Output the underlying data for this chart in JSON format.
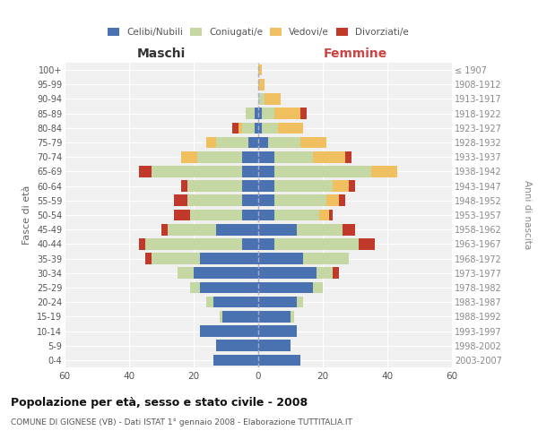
{
  "age_groups": [
    "0-4",
    "5-9",
    "10-14",
    "15-19",
    "20-24",
    "25-29",
    "30-34",
    "35-39",
    "40-44",
    "45-49",
    "50-54",
    "55-59",
    "60-64",
    "65-69",
    "70-74",
    "75-79",
    "80-84",
    "85-89",
    "90-94",
    "95-99",
    "100+"
  ],
  "birth_years": [
    "2003-2007",
    "1998-2002",
    "1993-1997",
    "1988-1992",
    "1983-1987",
    "1978-1982",
    "1973-1977",
    "1968-1972",
    "1963-1967",
    "1958-1962",
    "1953-1957",
    "1948-1952",
    "1943-1947",
    "1938-1942",
    "1933-1937",
    "1928-1932",
    "1923-1927",
    "1918-1922",
    "1913-1917",
    "1908-1912",
    "≤ 1907"
  ],
  "maschi_celibi": [
    14,
    13,
    18,
    11,
    14,
    18,
    20,
    18,
    5,
    13,
    5,
    5,
    5,
    5,
    5,
    3,
    1,
    1,
    0,
    0,
    0
  ],
  "maschi_coniugati": [
    0,
    0,
    0,
    1,
    2,
    3,
    5,
    15,
    30,
    15,
    16,
    17,
    17,
    28,
    14,
    10,
    4,
    3,
    0,
    0,
    0
  ],
  "maschi_vedovi": [
    0,
    0,
    0,
    0,
    0,
    0,
    0,
    0,
    0,
    0,
    0,
    0,
    0,
    0,
    5,
    3,
    1,
    0,
    0,
    0,
    0
  ],
  "maschi_divorziati": [
    0,
    0,
    0,
    0,
    0,
    0,
    0,
    2,
    2,
    2,
    5,
    4,
    2,
    4,
    0,
    0,
    2,
    0,
    0,
    0,
    0
  ],
  "femmine_celibi": [
    13,
    10,
    12,
    10,
    12,
    17,
    18,
    14,
    5,
    12,
    5,
    5,
    5,
    5,
    5,
    3,
    1,
    1,
    0,
    0,
    0
  ],
  "femmine_coniugati": [
    0,
    0,
    0,
    1,
    2,
    3,
    5,
    14,
    26,
    14,
    14,
    16,
    18,
    30,
    12,
    10,
    5,
    4,
    2,
    0,
    0
  ],
  "femmine_vedovi": [
    0,
    0,
    0,
    0,
    0,
    0,
    0,
    0,
    0,
    0,
    3,
    4,
    5,
    8,
    10,
    8,
    8,
    8,
    5,
    2,
    1
  ],
  "femmine_divorziati": [
    0,
    0,
    0,
    0,
    0,
    0,
    2,
    0,
    5,
    4,
    1,
    2,
    2,
    0,
    2,
    0,
    0,
    2,
    0,
    0,
    0
  ],
  "colors": {
    "celibi": "#4a72b0",
    "coniugati": "#c5d8a4",
    "vedovi": "#f0c060",
    "divorziati": "#c0392b"
  },
  "title": "Popolazione per età, sesso e stato civile - 2008",
  "subtitle": "COMUNE DI GIGNESE (VB) - Dati ISTAT 1° gennaio 2008 - Elaborazione TUTTITALIA.IT",
  "ylabel_left": "Fasce di età",
  "ylabel_right": "Anni di nascita",
  "xlabel_left": "Maschi",
  "xlabel_right": "Femmine",
  "xlim": 60,
  "background_color": "#ffffff",
  "plot_bg": "#f0f0f0",
  "grid_color": "#ffffff"
}
